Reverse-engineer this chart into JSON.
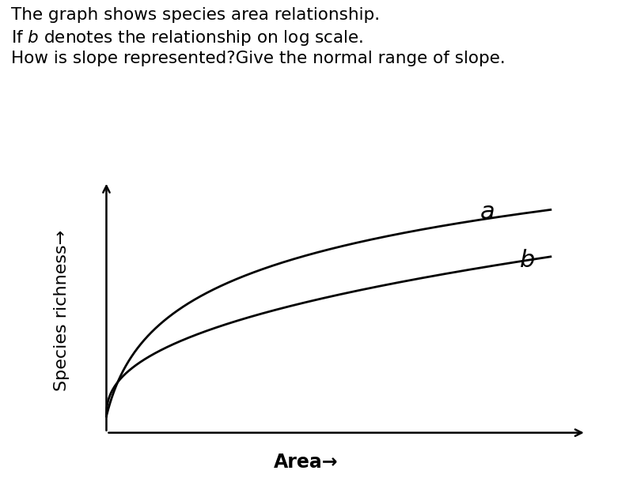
{
  "text_line1": "The graph shows species area relationship.",
  "text_line2": "If $b$ denotes the relationship on log scale.",
  "text_line3": "How is slope represented?Give the normal range of slope.",
  "ylabel": "Species richness→",
  "xlabel": "Area→",
  "curve_a_label": "a",
  "curve_b_label": "b",
  "background_color": "#ffffff",
  "line_color": "#000000",
  "text_fontsize": 15.5,
  "label_fontsize": 22,
  "axis_label_fontsize": 17
}
